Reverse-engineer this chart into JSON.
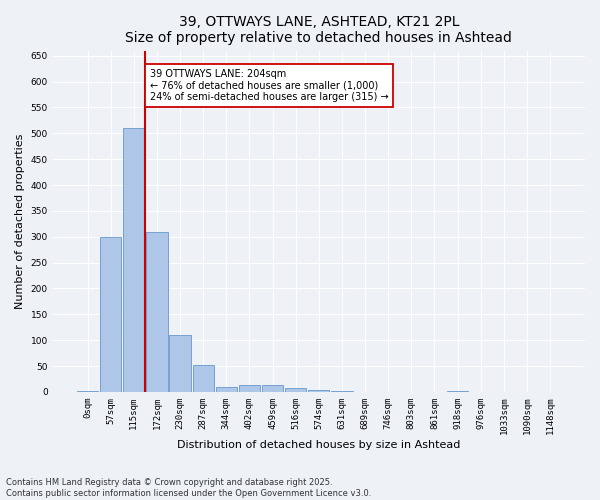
{
  "title1": "39, OTTWAYS LANE, ASHTEAD, KT21 2PL",
  "title2": "Size of property relative to detached houses in Ashtead",
  "xlabel": "Distribution of detached houses by size in Ashtead",
  "ylabel": "Number of detached properties",
  "bar_labels": [
    "0sqm",
    "57sqm",
    "115sqm",
    "172sqm",
    "230sqm",
    "287sqm",
    "344sqm",
    "402sqm",
    "459sqm",
    "516sqm",
    "574sqm",
    "631sqm",
    "689sqm",
    "746sqm",
    "803sqm",
    "861sqm",
    "918sqm",
    "976sqm",
    "1033sqm",
    "1090sqm",
    "1148sqm"
  ],
  "bar_values": [
    2,
    300,
    510,
    310,
    110,
    53,
    10,
    13,
    13,
    8,
    3,
    1,
    0,
    0,
    0,
    0,
    1,
    0,
    0,
    0,
    0
  ],
  "bar_color": "#aec6e8",
  "bar_edge_color": "#6699cc",
  "vline_x": 2.5,
  "vline_color": "#cc0000",
  "annotation_text": "39 OTTWAYS LANE: 204sqm\n← 76% of detached houses are smaller (1,000)\n24% of semi-detached houses are larger (315) →",
  "annotation_box_color": "#ffffff",
  "annotation_box_edge": "#cc0000",
  "ylim": [
    0,
    660
  ],
  "yticks": [
    0,
    50,
    100,
    150,
    200,
    250,
    300,
    350,
    400,
    450,
    500,
    550,
    600,
    650
  ],
  "background_color": "#eef2f7",
  "footer": "Contains HM Land Registry data © Crown copyright and database right 2025.\nContains public sector information licensed under the Open Government Licence v3.0.",
  "title_fontsize": 10,
  "subtitle_fontsize": 9,
  "label_fontsize": 8,
  "tick_fontsize": 6.5,
  "footer_fontsize": 6,
  "ann_fontsize": 7
}
